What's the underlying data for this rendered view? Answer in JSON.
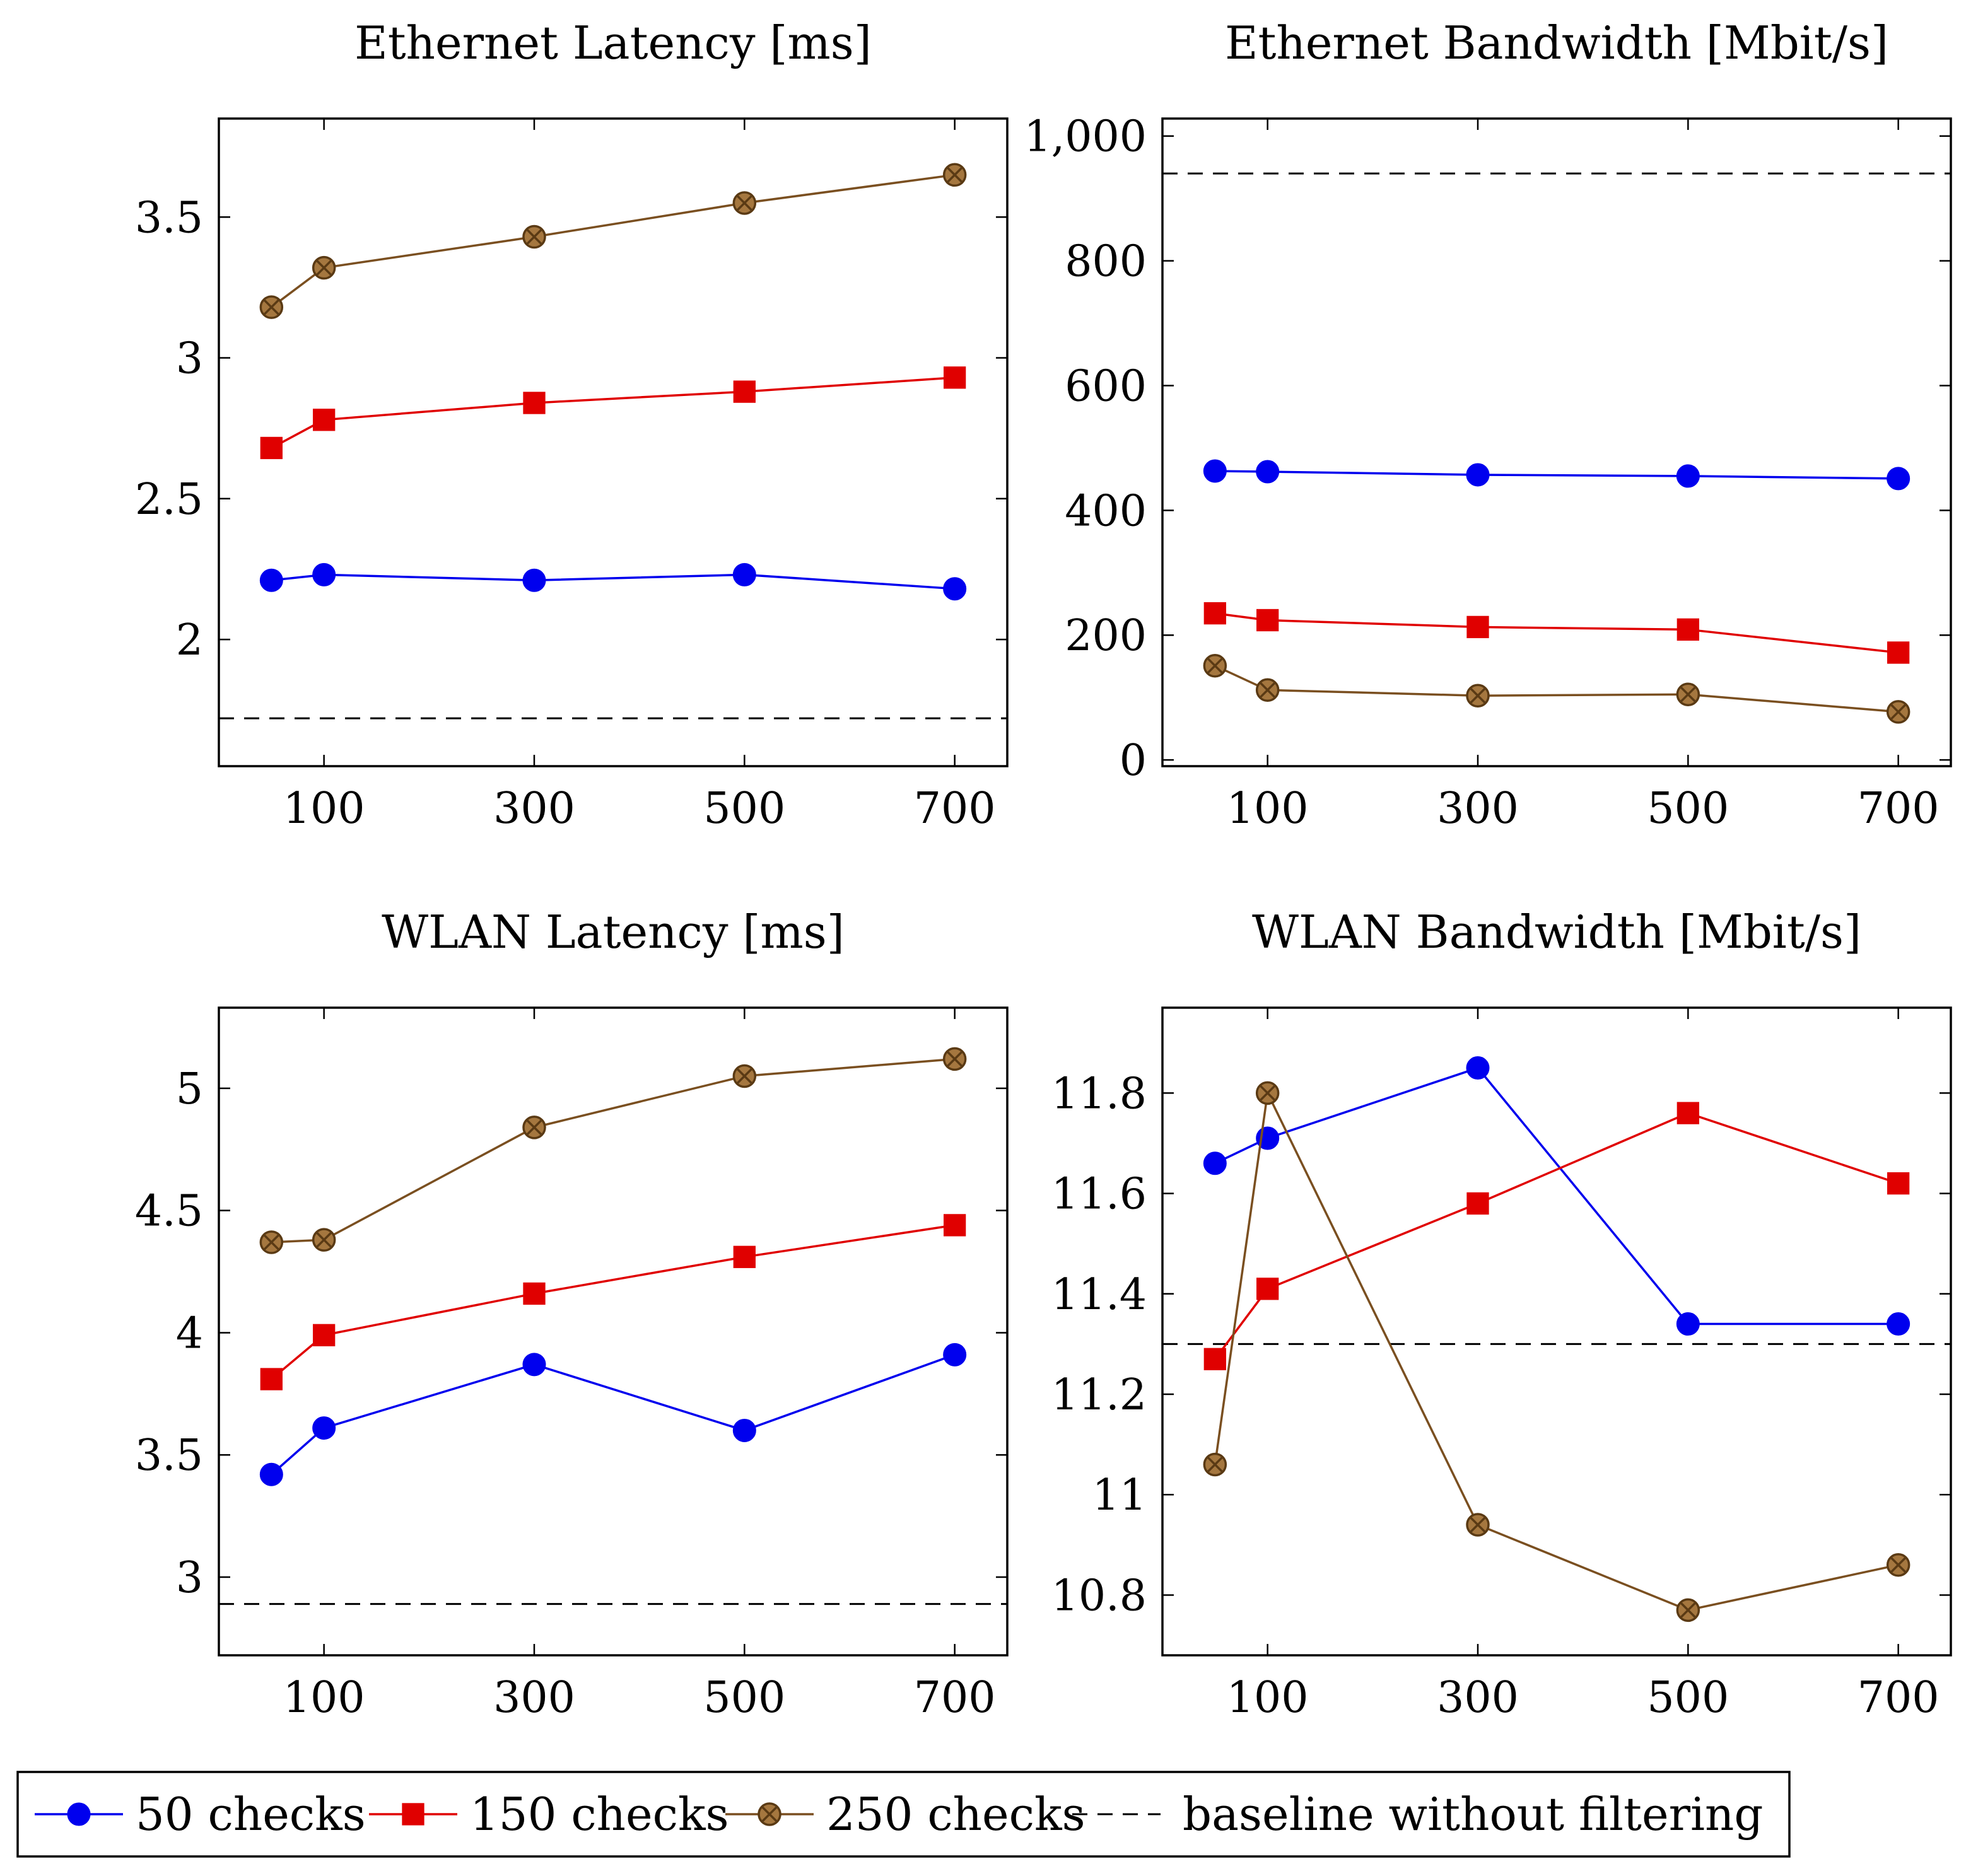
{
  "series_styles": [
    {
      "key": "s50",
      "label": "50 checks",
      "color": "#0000ee",
      "marker": "circle"
    },
    {
      "key": "s150",
      "label": "150 checks",
      "color": "#e00000",
      "marker": "square"
    },
    {
      "key": "s250",
      "label": "250 checks",
      "color": "#7a4f20",
      "marker": "otimes"
    }
  ],
  "baseline_style": {
    "label": "baseline without filtering",
    "color": "#000000",
    "dash": true
  },
  "chart_data": [
    {
      "type": "line",
      "title": "Ethernet Latency [ms]",
      "x": [
        50,
        100,
        300,
        500,
        700
      ],
      "xticks": [
        "100",
        "300",
        "500",
        "700"
      ],
      "xtick_values": [
        100,
        300,
        500,
        700
      ],
      "yticks": [
        "2",
        "2.5",
        "3",
        "3.5"
      ],
      "ytick_values": [
        2,
        2.5,
        3,
        3.5
      ],
      "xlim": [
        0,
        750
      ],
      "ylim": [
        1.55,
        3.85
      ],
      "series": [
        {
          "name": "50 checks",
          "values": [
            2.21,
            2.23,
            2.21,
            2.23,
            2.18
          ]
        },
        {
          "name": "150 checks",
          "values": [
            2.68,
            2.78,
            2.84,
            2.88,
            2.93
          ]
        },
        {
          "name": "250 checks",
          "values": [
            3.18,
            3.32,
            3.43,
            3.55,
            3.65
          ]
        }
      ],
      "baseline": 1.72
    },
    {
      "type": "line",
      "title": "Ethernet Bandwidth [Mbit/s]",
      "x": [
        50,
        100,
        300,
        500,
        700
      ],
      "xticks": [
        "100",
        "300",
        "500",
        "700"
      ],
      "xtick_values": [
        100,
        300,
        500,
        700
      ],
      "yticks": [
        "0",
        "200",
        "400",
        "600",
        "800",
        "1,000"
      ],
      "ytick_values": [
        0,
        200,
        400,
        600,
        800,
        1000
      ],
      "xlim": [
        0,
        750
      ],
      "ylim": [
        -10,
        1028
      ],
      "series": [
        {
          "name": "50 checks",
          "values": [
            463,
            462,
            457,
            455,
            451
          ]
        },
        {
          "name": "150 checks",
          "values": [
            235,
            224,
            213,
            209,
            172
          ]
        },
        {
          "name": "250 checks",
          "values": [
            151,
            112,
            103,
            105,
            77
          ]
        }
      ],
      "baseline": 940
    },
    {
      "type": "line",
      "title": "WLAN Latency [ms]",
      "x": [
        50,
        100,
        300,
        500,
        700
      ],
      "xticks": [
        "100",
        "300",
        "500",
        "700"
      ],
      "xtick_values": [
        100,
        300,
        500,
        700
      ],
      "yticks": [
        "3",
        "3.5",
        "4",
        "4.5",
        "5"
      ],
      "ytick_values": [
        3,
        3.5,
        4,
        4.5,
        5
      ],
      "xlim": [
        0,
        750
      ],
      "ylim": [
        2.68,
        5.33
      ],
      "series": [
        {
          "name": "50 checks",
          "values": [
            3.42,
            3.61,
            3.87,
            3.6,
            3.91
          ]
        },
        {
          "name": "150 checks",
          "values": [
            3.81,
            3.99,
            4.16,
            4.31,
            4.44
          ]
        },
        {
          "name": "250 checks",
          "values": [
            4.37,
            4.38,
            4.84,
            5.05,
            5.12
          ]
        }
      ],
      "baseline": 2.89
    },
    {
      "type": "line",
      "title": "WLAN Bandwidth [Mbit/s]",
      "x": [
        50,
        100,
        300,
        500,
        700
      ],
      "xticks": [
        "100",
        "300",
        "500",
        "700"
      ],
      "xtick_values": [
        100,
        300,
        500,
        700
      ],
      "yticks": [
        "10.8",
        "11",
        "11.2",
        "11.4",
        "11.6",
        "11.8"
      ],
      "ytick_values": [
        10.8,
        11,
        11.2,
        11.4,
        11.6,
        11.8
      ],
      "xlim": [
        0,
        750
      ],
      "ylim": [
        10.68,
        11.97
      ],
      "series": [
        {
          "name": "50 checks",
          "values": [
            11.66,
            11.71,
            11.85,
            11.34,
            11.34
          ]
        },
        {
          "name": "150 checks",
          "values": [
            11.27,
            11.41,
            11.58,
            11.76,
            11.62
          ]
        },
        {
          "name": "250 checks",
          "values": [
            11.06,
            11.8,
            10.94,
            10.77,
            10.86
          ]
        }
      ],
      "baseline": 11.3
    }
  ]
}
